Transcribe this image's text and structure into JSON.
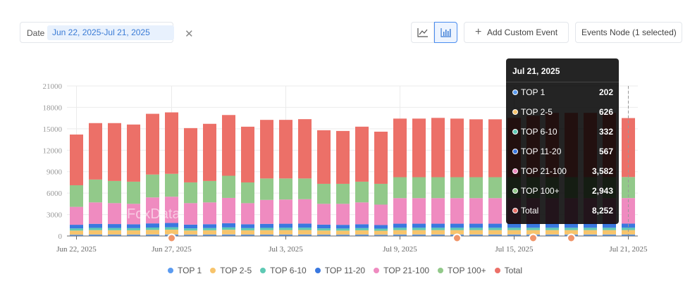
{
  "toolbar": {
    "date_label": "Date",
    "date_value": "Jun 22, 2025-Jul 21, 2025",
    "add_custom_event": "Add Custom Event",
    "events_node": "Events Node (1 selected)"
  },
  "watermark": "FoxData",
  "tooltip": {
    "title": "Jul 21, 2025",
    "rows": [
      {
        "label": "TOP 1",
        "value": "202"
      },
      {
        "label": "TOP 2-5",
        "value": "626"
      },
      {
        "label": "TOP 6-10",
        "value": "332"
      },
      {
        "label": "TOP 11-20",
        "value": "567"
      },
      {
        "label": "TOP 21-100",
        "value": "3,582"
      },
      {
        "label": "TOP 100+",
        "value": "2,943"
      },
      {
        "label": "Total",
        "value": "8,252"
      }
    ]
  },
  "colors": {
    "TOP 1": "#5b9bf0",
    "TOP 2-5": "#f7c46c",
    "TOP 6-10": "#5ec9b4",
    "TOP 11-20": "#3a78e0",
    "TOP 21-100": "#ef8bc0",
    "TOP 100+": "#92c98a",
    "Total": "#ec7068"
  },
  "chart_data": {
    "type": "bar",
    "stacked": true,
    "x_tick_labels": [
      "Jun 22, 2025",
      "Jun 27, 2025",
      "Jul 3, 2025",
      "Jul 9, 2025",
      "Jul 15, 2025",
      "Jul 21, 2025"
    ],
    "x_tick_indices": [
      0,
      5,
      11,
      17,
      23,
      29
    ],
    "ylim": [
      0,
      21000
    ],
    "yticks": [
      0,
      3000,
      6000,
      9000,
      12000,
      15000,
      18000,
      21000
    ],
    "grid": true,
    "legend_position": "bottom",
    "series": [
      {
        "name": "TOP 1",
        "values": [
          180,
          200,
          195,
          190,
          210,
          220,
          190,
          200,
          215,
          195,
          200,
          205,
          210,
          190,
          185,
          195,
          180,
          205,
          205,
          205,
          205,
          205,
          205,
          205,
          205,
          205,
          205,
          205,
          205,
          202
        ]
      },
      {
        "name": "TOP 2-5",
        "values": [
          580,
          620,
          610,
          600,
          640,
          660,
          580,
          600,
          650,
          600,
          620,
          625,
          630,
          580,
          570,
          600,
          560,
          620,
          620,
          620,
          620,
          620,
          620,
          620,
          620,
          620,
          620,
          620,
          620,
          626
        ]
      },
      {
        "name": "TOP 6-10",
        "values": [
          300,
          320,
          315,
          310,
          330,
          340,
          300,
          310,
          335,
          310,
          320,
          322,
          325,
          300,
          295,
          310,
          290,
          330,
          330,
          330,
          330,
          330,
          330,
          330,
          330,
          330,
          330,
          330,
          330,
          332
        ]
      },
      {
        "name": "TOP 11-20",
        "values": [
          510,
          560,
          550,
          540,
          580,
          600,
          520,
          540,
          590,
          540,
          560,
          565,
          570,
          520,
          510,
          540,
          500,
          565,
          565,
          565,
          565,
          565,
          565,
          565,
          565,
          565,
          565,
          565,
          565,
          567
        ]
      },
      {
        "name": "TOP 21-100",
        "values": [
          2510,
          3000,
          2930,
          2860,
          3640,
          3680,
          3010,
          3050,
          3540,
          2950,
          3350,
          3385,
          3415,
          2910,
          2940,
          3055,
          2860,
          3580,
          3580,
          3580,
          3580,
          3580,
          3580,
          3580,
          3580,
          3580,
          3580,
          3580,
          3580,
          3582
        ]
      },
      {
        "name": "TOP 100+",
        "values": [
          3020,
          3200,
          3100,
          3100,
          3200,
          3200,
          2900,
          3000,
          3100,
          2900,
          3000,
          2950,
          2900,
          2800,
          2800,
          2900,
          2910,
          2930,
          2930,
          2930,
          2930,
          2930,
          2930,
          2930,
          2930,
          2930,
          2930,
          2930,
          2930,
          2943
        ]
      },
      {
        "name": "Total",
        "values": [
          7100,
          7900,
          8100,
          8000,
          8500,
          8600,
          7600,
          8000,
          8500,
          7800,
          8200,
          8200,
          8300,
          7500,
          7400,
          7700,
          7300,
          8200,
          8200,
          8300,
          8200,
          8100,
          8100,
          8300,
          8600,
          9000,
          9000,
          9000,
          9000,
          8252
        ]
      }
    ],
    "markers_at_indices": [
      5,
      20,
      24,
      26
    ]
  }
}
